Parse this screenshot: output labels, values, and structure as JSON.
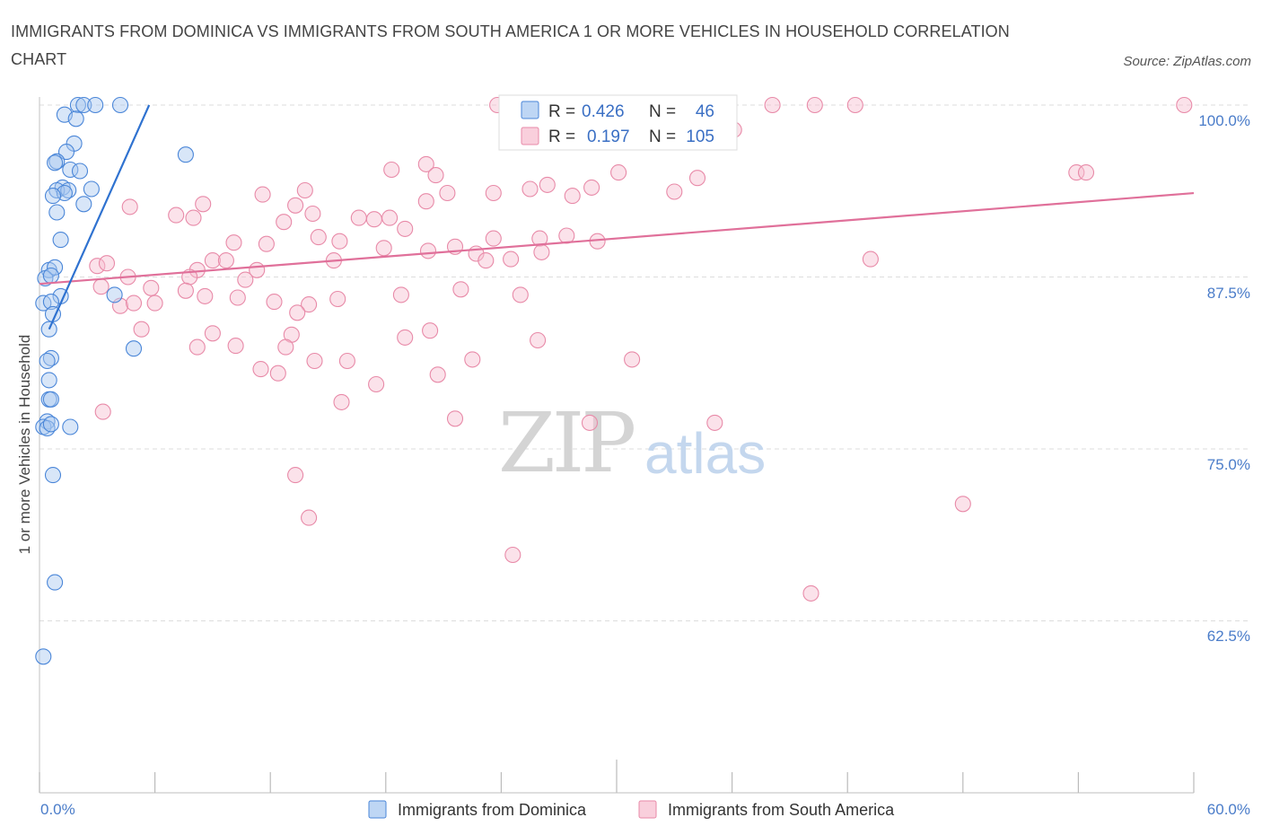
{
  "title": "IMMIGRANTS FROM DOMINICA VS IMMIGRANTS FROM SOUTH AMERICA 1 OR MORE VEHICLES IN HOUSEHOLD CORRELATION CHART",
  "source": "Source: ZipAtlas.com",
  "watermark": {
    "zip": "ZIP",
    "atlas": "atlas"
  },
  "colors": {
    "blue_fill": "#a8c8f0",
    "blue_stroke": "#4a86d8",
    "blue_line": "#2f72d0",
    "pink_fill": "#f7bfd0",
    "pink_stroke": "#e88aa8",
    "pink_line": "#e0709a",
    "tick_text": "#4a7cc9",
    "grid": "#dddddd"
  },
  "stats": {
    "rows": [
      {
        "r_label": "R =",
        "r_value": "0.426",
        "n_label": "N =",
        "n_value": "46"
      },
      {
        "r_label": "R =",
        "r_value": "0.197",
        "n_label": "N =",
        "n_value": "105"
      }
    ]
  },
  "chart_data": {
    "type": "scatter",
    "title": "IMMIGRANTS FROM DOMINICA VS IMMIGRANTS FROM SOUTH AMERICA 1 OR MORE VEHICLES IN HOUSEHOLD CORRELATION CHART",
    "xlabel": "",
    "ylabel": "1 or more Vehicles in Household",
    "xlim": [
      0,
      60
    ],
    "ylim": [
      50,
      100
    ],
    "x_tick_labels": [
      "0.0%",
      "60.0%"
    ],
    "y_ticks": [
      62.5,
      75.0,
      87.5,
      100.0
    ],
    "y_tick_labels": [
      "62.5%",
      "75.0%",
      "87.5%",
      "100.0%"
    ],
    "legend": [
      "Immigrants from Dominica",
      "Immigrants from South America"
    ],
    "legend_position": "bottom-center",
    "series": [
      {
        "name": "Immigrants from Dominica",
        "R": 0.426,
        "N": 46,
        "trend": {
          "x": [
            0.5,
            5.7
          ],
          "y": [
            83.7,
            100.0
          ]
        },
        "points": [
          [
            2.0,
            100.0
          ],
          [
            2.3,
            100.0
          ],
          [
            2.9,
            100.0
          ],
          [
            4.2,
            100.0
          ],
          [
            1.3,
            99.3
          ],
          [
            1.9,
            99.0
          ],
          [
            1.8,
            97.2
          ],
          [
            1.4,
            96.6
          ],
          [
            0.9,
            95.9
          ],
          [
            0.8,
            95.8
          ],
          [
            1.6,
            95.3
          ],
          [
            2.1,
            95.2
          ],
          [
            7.6,
            96.4
          ],
          [
            1.2,
            94.0
          ],
          [
            0.9,
            93.8
          ],
          [
            1.5,
            93.8
          ],
          [
            2.7,
            93.9
          ],
          [
            1.3,
            93.6
          ],
          [
            0.7,
            93.4
          ],
          [
            2.3,
            92.8
          ],
          [
            0.9,
            92.2
          ],
          [
            1.1,
            90.2
          ],
          [
            0.5,
            88.0
          ],
          [
            0.8,
            88.2
          ],
          [
            0.3,
            87.4
          ],
          [
            0.6,
            87.6
          ],
          [
            1.1,
            86.1
          ],
          [
            3.9,
            86.2
          ],
          [
            0.2,
            85.6
          ],
          [
            0.6,
            85.7
          ],
          [
            0.7,
            84.8
          ],
          [
            0.5,
            83.7
          ],
          [
            4.9,
            82.3
          ],
          [
            0.6,
            81.6
          ],
          [
            0.4,
            81.4
          ],
          [
            0.5,
            80.0
          ],
          [
            0.5,
            78.6
          ],
          [
            0.6,
            78.6
          ],
          [
            0.4,
            77.0
          ],
          [
            0.2,
            76.6
          ],
          [
            0.4,
            76.5
          ],
          [
            1.6,
            76.6
          ],
          [
            0.7,
            73.1
          ],
          [
            0.8,
            65.3
          ],
          [
            0.2,
            59.9
          ],
          [
            0.6,
            76.8
          ]
        ]
      },
      {
        "name": "Immigrants from South America",
        "R": 0.197,
        "N": 105,
        "trend": {
          "x": [
            0.0,
            60.0
          ],
          "y": [
            87.0,
            93.6
          ]
        },
        "points": [
          [
            23.8,
            100.0
          ],
          [
            26.2,
            100.0
          ],
          [
            35.0,
            100.0
          ],
          [
            38.1,
            100.0
          ],
          [
            40.3,
            100.0
          ],
          [
            42.4,
            100.0
          ],
          [
            59.5,
            100.0
          ],
          [
            29.2,
            98.0
          ],
          [
            36.1,
            98.2
          ],
          [
            18.3,
            95.3
          ],
          [
            20.1,
            95.7
          ],
          [
            30.1,
            95.1
          ],
          [
            20.6,
            94.9
          ],
          [
            34.2,
            94.7
          ],
          [
            53.9,
            95.1
          ],
          [
            54.4,
            95.1
          ],
          [
            26.4,
            94.2
          ],
          [
            28.7,
            94.0
          ],
          [
            25.5,
            93.9
          ],
          [
            23.6,
            93.6
          ],
          [
            13.8,
            93.8
          ],
          [
            11.6,
            93.5
          ],
          [
            21.2,
            93.6
          ],
          [
            27.7,
            93.4
          ],
          [
            33.0,
            93.7
          ],
          [
            20.1,
            93.0
          ],
          [
            8.5,
            92.8
          ],
          [
            4.7,
            92.6
          ],
          [
            13.3,
            92.7
          ],
          [
            7.1,
            92.0
          ],
          [
            14.2,
            92.1
          ],
          [
            8.0,
            91.8
          ],
          [
            16.6,
            91.8
          ],
          [
            18.2,
            91.8
          ],
          [
            17.4,
            91.7
          ],
          [
            12.7,
            91.5
          ],
          [
            19.0,
            91.0
          ],
          [
            14.5,
            90.4
          ],
          [
            15.6,
            90.1
          ],
          [
            27.4,
            90.5
          ],
          [
            23.6,
            90.3
          ],
          [
            29.0,
            90.1
          ],
          [
            26.0,
            90.3
          ],
          [
            10.1,
            90.0
          ],
          [
            11.8,
            89.9
          ],
          [
            17.9,
            89.6
          ],
          [
            20.2,
            89.4
          ],
          [
            21.6,
            89.7
          ],
          [
            26.1,
            89.3
          ],
          [
            22.7,
            89.2
          ],
          [
            23.2,
            88.7
          ],
          [
            24.5,
            88.8
          ],
          [
            9.0,
            88.7
          ],
          [
            9.7,
            88.7
          ],
          [
            15.3,
            88.7
          ],
          [
            8.2,
            88.0
          ],
          [
            11.3,
            88.0
          ],
          [
            43.2,
            88.8
          ],
          [
            7.8,
            87.5
          ],
          [
            10.7,
            87.3
          ],
          [
            3.0,
            88.3
          ],
          [
            3.5,
            88.5
          ],
          [
            4.6,
            87.5
          ],
          [
            5.8,
            86.7
          ],
          [
            7.6,
            86.5
          ],
          [
            8.6,
            86.1
          ],
          [
            10.3,
            86.0
          ],
          [
            12.2,
            85.7
          ],
          [
            14.0,
            85.5
          ],
          [
            15.5,
            85.9
          ],
          [
            18.8,
            86.2
          ],
          [
            21.9,
            86.6
          ],
          [
            25.0,
            86.2
          ],
          [
            3.2,
            86.8
          ],
          [
            4.2,
            85.4
          ],
          [
            4.9,
            85.6
          ],
          [
            6.0,
            85.6
          ],
          [
            13.4,
            84.9
          ],
          [
            5.3,
            83.7
          ],
          [
            9.0,
            83.4
          ],
          [
            13.1,
            83.3
          ],
          [
            19.0,
            83.1
          ],
          [
            25.9,
            82.9
          ],
          [
            20.3,
            83.6
          ],
          [
            8.2,
            82.4
          ],
          [
            10.2,
            82.5
          ],
          [
            12.8,
            82.4
          ],
          [
            30.8,
            81.5
          ],
          [
            14.3,
            81.4
          ],
          [
            16.0,
            81.4
          ],
          [
            22.5,
            81.5
          ],
          [
            11.5,
            80.8
          ],
          [
            12.4,
            80.5
          ],
          [
            15.7,
            78.4
          ],
          [
            17.5,
            79.7
          ],
          [
            20.7,
            80.4
          ],
          [
            3.3,
            77.7
          ],
          [
            21.6,
            77.2
          ],
          [
            28.6,
            76.9
          ],
          [
            35.1,
            76.9
          ],
          [
            13.3,
            73.1
          ],
          [
            14.0,
            70.0
          ],
          [
            24.6,
            67.3
          ],
          [
            48.0,
            71.0
          ],
          [
            40.1,
            64.5
          ]
        ]
      }
    ]
  },
  "axes": {
    "ylabel": "1 or more Vehicles in Household",
    "x_left": "0.0%",
    "x_right": "60.0%",
    "y_ticks": [
      "100.0%",
      "87.5%",
      "75.0%",
      "62.5%"
    ]
  },
  "legend": {
    "items": [
      "Immigrants from Dominica",
      "Immigrants from South America"
    ]
  }
}
